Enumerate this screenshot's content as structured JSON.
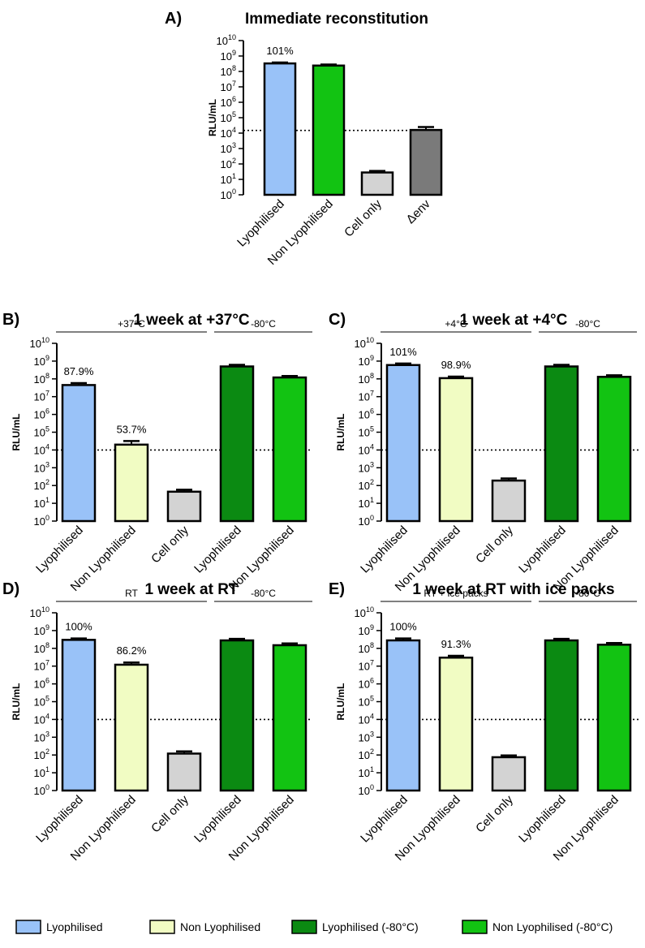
{
  "colors": {
    "lyophilised": "#99c2f8",
    "non_lyophilised": "#f1fcc3",
    "lyophilised_80": "#0b8a12",
    "non_lyophilised_80": "#12c312",
    "cell_only": "#d3d3d3",
    "delta_env": "#7a7a7a"
  },
  "legend": [
    {
      "label": "Lyophilised",
      "color_key": "lyophilised"
    },
    {
      "label": "Non Lyophilised",
      "color_key": "non_lyophilised"
    },
    {
      "label": "Lyophilised (-80°C)",
      "color_key": "lyophilised_80"
    },
    {
      "label": "Non Lyophilised (-80°C)",
      "color_key": "non_lyophilised_80"
    }
  ],
  "chart_data": [
    {
      "id": "A",
      "panel_label": "A)",
      "title": "Immediate reconstitution",
      "type": "bar",
      "yscale": "log",
      "ylabel": "RLU/mL",
      "ylim": [
        1,
        10000000000
      ],
      "ytick_base": "10",
      "ytick_exponents": [
        "0",
        "1",
        "2",
        "3",
        "4",
        "5",
        "6",
        "7",
        "8",
        "9",
        "10"
      ],
      "threshold": 15000,
      "categories": [
        "Lyophilised",
        "Non Lyophilised",
        "Cell only",
        "Δenv"
      ],
      "values": [
        330000000,
        240000000,
        28,
        16000
      ],
      "errors": [
        380000000,
        280000000,
        35,
        25000
      ],
      "color_keys": [
        "lyophilised",
        "non_lyophilised_80",
        "cell_only",
        "delta_env"
      ],
      "percent_labels": [
        "101%",
        "",
        "",
        ""
      ],
      "groups": []
    },
    {
      "id": "B",
      "panel_label": "B)",
      "title": "1 week at +37°C",
      "type": "bar",
      "yscale": "log",
      "ylabel": "RLU/mL",
      "ylim": [
        1,
        10000000000
      ],
      "ytick_base": "10",
      "ytick_exponents": [
        "0",
        "1",
        "2",
        "3",
        "4",
        "5",
        "6",
        "7",
        "8",
        "9",
        "10"
      ],
      "threshold": 10000,
      "categories": [
        "Lyophilised",
        "Non Lyophilised",
        "Cell only",
        "Lyophilised",
        "Non Lyophilised"
      ],
      "values": [
        45000000,
        20000,
        45,
        500000000,
        120000000
      ],
      "errors": [
        58000000,
        32000,
        58,
        620000000,
        145000000
      ],
      "color_keys": [
        "lyophilised",
        "non_lyophilised",
        "cell_only",
        "lyophilised_80",
        "non_lyophilised_80"
      ],
      "percent_labels": [
        "87.9%",
        "53.7%",
        "",
        "",
        ""
      ],
      "groups": [
        {
          "label": "+37°C",
          "bars": [
            0,
            2
          ]
        },
        {
          "label": "-80°C",
          "bars": [
            3,
            4
          ]
        }
      ]
    },
    {
      "id": "C",
      "panel_label": "C)",
      "title": "1 week at +4°C",
      "type": "bar",
      "yscale": "log",
      "ylabel": "RLU/mL",
      "ylim": [
        1,
        10000000000
      ],
      "ytick_base": "10",
      "ytick_exponents": [
        "0",
        "1",
        "2",
        "3",
        "4",
        "5",
        "6",
        "7",
        "8",
        "9",
        "10"
      ],
      "threshold": 10000,
      "categories": [
        "Lyophilised",
        "Non Lyophilised",
        "Cell only",
        "Lyophilised",
        "Non Lyophilised"
      ],
      "values": [
        600000000,
        110000000,
        190,
        500000000,
        130000000
      ],
      "errors": [
        730000000,
        135000000,
        250,
        620000000,
        160000000
      ],
      "color_keys": [
        "lyophilised",
        "non_lyophilised",
        "cell_only",
        "lyophilised_80",
        "non_lyophilised_80"
      ],
      "percent_labels": [
        "101%",
        "98.9%",
        "",
        "",
        ""
      ],
      "groups": [
        {
          "label": "+4°C",
          "bars": [
            0,
            2
          ]
        },
        {
          "label": "-80°C",
          "bars": [
            3,
            4
          ]
        }
      ]
    },
    {
      "id": "D",
      "panel_label": "D)",
      "title": "1 week at RT",
      "type": "bar",
      "yscale": "log",
      "ylabel": "RLU/mL",
      "ylim": [
        1,
        10000000000
      ],
      "ytick_base": "10",
      "ytick_exponents": [
        "0",
        "1",
        "2",
        "3",
        "4",
        "5",
        "6",
        "7",
        "8",
        "9",
        "10"
      ],
      "threshold": 10000,
      "categories": [
        "Lyophilised",
        "Non Lyophilised",
        "Cell only",
        "Lyophilised",
        "Non Lyophilised"
      ],
      "values": [
        300000000,
        12000000,
        120,
        280000000,
        150000000
      ],
      "errors": [
        360000000,
        16000000,
        160,
        340000000,
        190000000
      ],
      "color_keys": [
        "lyophilised",
        "non_lyophilised",
        "cell_only",
        "lyophilised_80",
        "non_lyophilised_80"
      ],
      "percent_labels": [
        "100%",
        "86.2%",
        "",
        "",
        ""
      ],
      "groups": [
        {
          "label": "RT",
          "bars": [
            0,
            2
          ]
        },
        {
          "label": "-80°C",
          "bars": [
            3,
            4
          ]
        }
      ]
    },
    {
      "id": "E",
      "panel_label": "E)",
      "title": "1 week at RT with ice packs",
      "type": "bar",
      "yscale": "log",
      "ylabel": "RLU/mL",
      "ylim": [
        1,
        10000000000
      ],
      "ytick_base": "10",
      "ytick_exponents": [
        "0",
        "1",
        "2",
        "3",
        "4",
        "5",
        "6",
        "7",
        "8",
        "9",
        "10"
      ],
      "threshold": 10000,
      "categories": [
        "Lyophilised",
        "Non Lyophilised",
        "Cell only",
        "Lyophilised",
        "Non Lyophilised"
      ],
      "values": [
        280000000,
        30000000,
        75,
        280000000,
        160000000
      ],
      "errors": [
        360000000,
        38000000,
        95,
        340000000,
        200000000
      ],
      "color_keys": [
        "lyophilised",
        "non_lyophilised",
        "cell_only",
        "lyophilised_80",
        "non_lyophilised_80"
      ],
      "percent_labels": [
        "100%",
        "91.3%",
        "",
        "",
        ""
      ],
      "groups": [
        {
          "label": "RT + ice packs",
          "bars": [
            0,
            2
          ]
        },
        {
          "label": "-80°C",
          "bars": [
            3,
            4
          ]
        }
      ]
    }
  ]
}
